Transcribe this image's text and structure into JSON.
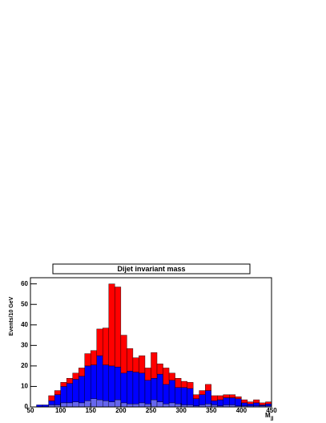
{
  "chart_data": {
    "type": "stacked_histogram",
    "title": "Dijet invariant mass",
    "y_label": "Events/10 GeV",
    "x_label": "M",
    "x_label_sub": "jj",
    "bins": [
      50,
      60,
      70,
      80,
      90,
      100,
      110,
      120,
      130,
      140,
      150,
      160,
      170,
      180,
      190,
      200,
      210,
      220,
      230,
      240,
      250,
      260,
      270,
      280,
      290,
      300,
      310,
      320,
      330,
      340,
      350,
      360,
      370,
      380,
      390,
      400,
      410,
      420,
      430,
      440,
      450
    ],
    "series": [
      {
        "color": "#6666ee",
        "values": [
          0,
          0,
          0,
          1,
          1,
          2,
          2,
          2.5,
          2,
          3,
          4,
          3.5,
          3,
          2.5,
          3.5,
          2,
          1.5,
          1.5,
          2,
          1.5,
          3.5,
          2.5,
          1.5,
          2,
          1.5,
          1,
          1,
          0.5,
          1,
          1.5,
          1,
          0.5,
          1,
          1,
          0.5,
          0.5,
          0.5,
          0.5,
          0.5,
          0.5
        ]
      },
      {
        "color": "#0000ff",
        "values": [
          0,
          1,
          1,
          2,
          5,
          8,
          9.5,
          11,
          13,
          17,
          16.5,
          21.5,
          17.5,
          17.5,
          16,
          14.5,
          16,
          15.5,
          14.5,
          11.5,
          10.5,
          13.5,
          9.5,
          11,
          8,
          8.5,
          8,
          3.5,
          5,
          6.5,
          2,
          3,
          3.5,
          3.5,
          3.5,
          1.5,
          1,
          1.5,
          0.5,
          1
        ]
      },
      {
        "color": "#ff0000",
        "values": [
          0,
          0,
          0,
          2.5,
          2,
          2,
          2.5,
          3,
          4,
          6,
          7,
          13,
          18,
          40,
          39,
          18.5,
          11,
          7,
          8.5,
          6,
          12.5,
          5,
          8,
          3.5,
          4.5,
          3,
          3,
          2,
          2,
          3,
          2.5,
          2,
          1.5,
          1.5,
          1,
          1.5,
          1,
          1.5,
          1,
          1
        ]
      }
    ],
    "xlim": [
      50,
      450
    ],
    "xticks": [
      50,
      100,
      150,
      200,
      250,
      300,
      350,
      400,
      450
    ],
    "ylim": [
      0,
      63
    ],
    "yticks": [
      0,
      10,
      20,
      30,
      40,
      50,
      60
    ]
  }
}
